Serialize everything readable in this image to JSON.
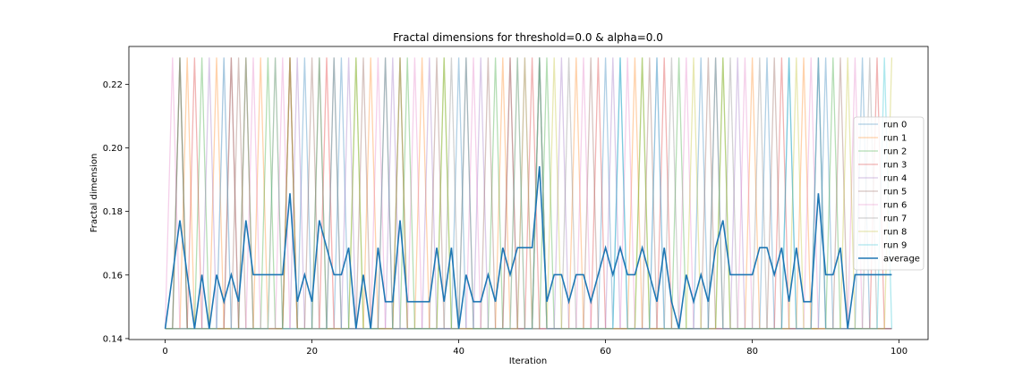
{
  "chart_data": {
    "type": "line",
    "title": "Fractal dimensions for threshold=0.0 & alpha=0.0",
    "xlabel": "Iteration",
    "ylabel": "Fractal dimension",
    "xlim": [
      -4.95,
      103.95
    ],
    "ylim": [
      0.1397,
      0.2319
    ],
    "xticks": [
      0,
      20,
      40,
      60,
      80,
      100
    ],
    "yticks": [
      0.14,
      0.16,
      0.18,
      0.2,
      0.22
    ],
    "ytick_labels": [
      "0.14",
      "0.16",
      "0.18",
      "0.20",
      "0.22"
    ],
    "low_value": 0.1431,
    "high_value": 0.2284,
    "legend_position": "center-right",
    "grid": false,
    "run_colors": [
      "#1f77b4",
      "#ff7f0e",
      "#2ca02c",
      "#d62728",
      "#9467bd",
      "#8c564b",
      "#e377c2",
      "#7f7f7f",
      "#bcbd22",
      "#17becf"
    ],
    "run_alpha": 0.35,
    "average_color": "#1f77b4",
    "series": [
      {
        "name": "run 0",
        "high_iterations": [
          11,
          19,
          24,
          40,
          60,
          62,
          73,
          82,
          85,
          90,
          95
        ]
      },
      {
        "name": "run 1",
        "high_iterations": [
          3,
          7,
          13,
          15,
          22,
          28,
          35,
          46,
          48,
          56,
          64,
          80,
          87
        ]
      },
      {
        "name": "run 2",
        "high_iterations": [
          2,
          5,
          14,
          21,
          26,
          33,
          38,
          45,
          52,
          65,
          70,
          76,
          91
        ]
      },
      {
        "name": "run 3",
        "high_iterations": [
          4,
          9,
          17,
          23,
          30,
          41,
          47,
          50,
          59,
          68,
          75,
          84,
          97
        ]
      },
      {
        "name": "run 4",
        "high_iterations": [
          6,
          11,
          18,
          25,
          31,
          36,
          43,
          49,
          54,
          61,
          67,
          78,
          89
        ]
      },
      {
        "name": "run 5",
        "high_iterations": [
          2,
          10,
          17,
          20,
          27,
          32,
          37,
          44,
          51,
          58,
          66,
          74,
          83,
          92
        ]
      },
      {
        "name": "run 6",
        "high_iterations": [
          1,
          8,
          12,
          16,
          22,
          29,
          34,
          42,
          51,
          57,
          63,
          71,
          79,
          88,
          94
        ]
      },
      {
        "name": "run 7",
        "high_iterations": [
          2,
          9,
          17,
          21,
          32,
          39,
          47,
          51,
          55,
          69,
          77,
          81,
          89,
          96
        ]
      },
      {
        "name": "run 8",
        "high_iterations": [
          11,
          17,
          26,
          32,
          38,
          49,
          51,
          53,
          65,
          72,
          76,
          86,
          93,
          99
        ]
      },
      {
        "name": "run 9",
        "high_iterations": [
          8,
          15,
          23,
          30,
          41,
          48,
          51,
          62,
          67,
          75,
          85,
          89,
          98
        ]
      }
    ],
    "average": {
      "name": "average",
      "values": [
        0.1431,
        0.1601,
        0.1772,
        0.1601,
        0.1431,
        0.1601,
        0.1431,
        0.1601,
        0.1516,
        0.1601,
        0.1516,
        0.1772,
        0.1601,
        0.1601,
        0.1601,
        0.1601,
        0.1601,
        0.1857,
        0.1516,
        0.1601,
        0.1516,
        0.1772,
        0.1686,
        0.1601,
        0.1601,
        0.1686,
        0.1431,
        0.1601,
        0.1431,
        0.1686,
        0.1516,
        0.1516,
        0.1772,
        0.1516,
        0.1516,
        0.1516,
        0.1516,
        0.1686,
        0.1516,
        0.1686,
        0.1431,
        0.1601,
        0.1516,
        0.1516,
        0.1601,
        0.1516,
        0.1686,
        0.1601,
        0.1686,
        0.1686,
        0.1686,
        0.1942,
        0.1516,
        0.1601,
        0.1601,
        0.1516,
        0.1601,
        0.1601,
        0.1516,
        0.1601,
        0.1686,
        0.1601,
        0.1686,
        0.1601,
        0.1601,
        0.1686,
        0.1601,
        0.1516,
        0.1686,
        0.1516,
        0.1431,
        0.1601,
        0.1516,
        0.1601,
        0.1516,
        0.1686,
        0.1772,
        0.1601,
        0.1601,
        0.1601,
        0.1601,
        0.1686,
        0.1686,
        0.1601,
        0.1686,
        0.1516,
        0.1686,
        0.1516,
        0.1516,
        0.1857,
        0.1601,
        0.1601,
        0.1686,
        0.1431,
        0.1601,
        0.1601,
        0.1601,
        0.1601,
        0.1601,
        0.1601
      ]
    }
  }
}
